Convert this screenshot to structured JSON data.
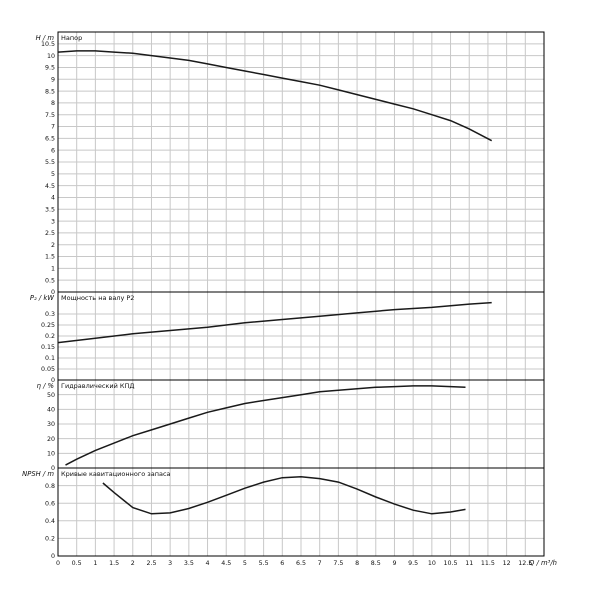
{
  "chart_data": [
    {
      "type": "line",
      "title": "Напор",
      "ylabel": "H / m",
      "xlabel": "Q / m³/h",
      "xlim": [
        0,
        13
      ],
      "ylim": [
        0,
        11
      ],
      "yticks": [
        0,
        0.5,
        1,
        1.5,
        2,
        2.5,
        3,
        3.5,
        4,
        4.5,
        5,
        5.5,
        6,
        6.5,
        7,
        7.5,
        8,
        8.5,
        9,
        9.5,
        10,
        10.5
      ],
      "grid": true,
      "series": [
        {
          "values_x": [
            0,
            0.5,
            1,
            1.5,
            2,
            2.5,
            3,
            3.5,
            4,
            4.5,
            5,
            5.5,
            6,
            6.5,
            7,
            7.5,
            8,
            8.5,
            9,
            9.5,
            10,
            10.5,
            11,
            11.6
          ],
          "values_y": [
            10.15,
            10.2,
            10.2,
            10.15,
            10.1,
            10.0,
            9.9,
            9.8,
            9.65,
            9.5,
            9.35,
            9.2,
            9.05,
            8.9,
            8.75,
            8.55,
            8.35,
            8.15,
            7.95,
            7.75,
            7.5,
            7.25,
            6.9,
            6.4
          ]
        }
      ]
    },
    {
      "type": "line",
      "title": "Мощность на валу P2",
      "ylabel": "P₂ / kW",
      "xlim": [
        0,
        13
      ],
      "ylim": [
        0,
        0.4
      ],
      "yticks": [
        0,
        0.05,
        0.1,
        0.15,
        0.2,
        0.25,
        0.3
      ],
      "grid": true,
      "series": [
        {
          "values_x": [
            0,
            1,
            2,
            3,
            4,
            5,
            6,
            7,
            8,
            9,
            10,
            11,
            11.6
          ],
          "values_y": [
            0.17,
            0.19,
            0.21,
            0.225,
            0.24,
            0.26,
            0.275,
            0.29,
            0.305,
            0.32,
            0.33,
            0.345,
            0.352
          ]
        }
      ]
    },
    {
      "type": "line",
      "title": "Гидравлический КПД",
      "ylabel": "η / %",
      "xlim": [
        0,
        13
      ],
      "ylim": [
        0,
        60
      ],
      "yticks": [
        0,
        10,
        20,
        30,
        40,
        50
      ],
      "grid": true,
      "series": [
        {
          "values_x": [
            0.2,
            0.5,
            1,
            1.5,
            2,
            2.5,
            3,
            3.5,
            4,
            4.5,
            5,
            5.5,
            6,
            6.5,
            7,
            7.5,
            8,
            8.5,
            9,
            9.5,
            10,
            10.5,
            10.9
          ],
          "values_y": [
            2,
            6,
            12,
            17,
            22,
            26,
            30,
            34,
            38,
            41,
            44,
            46,
            48,
            50,
            52,
            53,
            54,
            55,
            55.5,
            56,
            56,
            55.5,
            55
          ]
        }
      ]
    },
    {
      "type": "line",
      "title": "Кривые кавитационного запаса",
      "ylabel": "NPSH / m",
      "xlim": [
        0,
        13
      ],
      "ylim": [
        0,
        1.0
      ],
      "yticks": [
        0,
        0.2,
        0.4,
        0.6,
        0.8
      ],
      "xticks": [
        "0",
        "0.5",
        "1",
        "1.5",
        "2",
        "2.5",
        "3",
        "3.5",
        "4",
        "4.5",
        "5",
        "5.5",
        "6",
        "6.5",
        "7",
        "7.5",
        "8",
        "8.5",
        "9",
        "9.5",
        "10",
        "10.5",
        "11",
        "11.5",
        "12",
        "12.5"
      ],
      "grid": true,
      "series": [
        {
          "values_x": [
            1.2,
            1.5,
            2,
            2.5,
            3,
            3.5,
            4,
            4.5,
            5,
            5.5,
            6,
            6.5,
            7,
            7.5,
            8,
            8.5,
            9,
            9.5,
            10,
            10.5,
            10.9
          ],
          "values_y": [
            0.83,
            0.72,
            0.55,
            0.48,
            0.49,
            0.54,
            0.61,
            0.69,
            0.77,
            0.84,
            0.89,
            0.9,
            0.88,
            0.84,
            0.76,
            0.67,
            0.59,
            0.52,
            0.48,
            0.5,
            0.53
          ]
        }
      ]
    }
  ]
}
